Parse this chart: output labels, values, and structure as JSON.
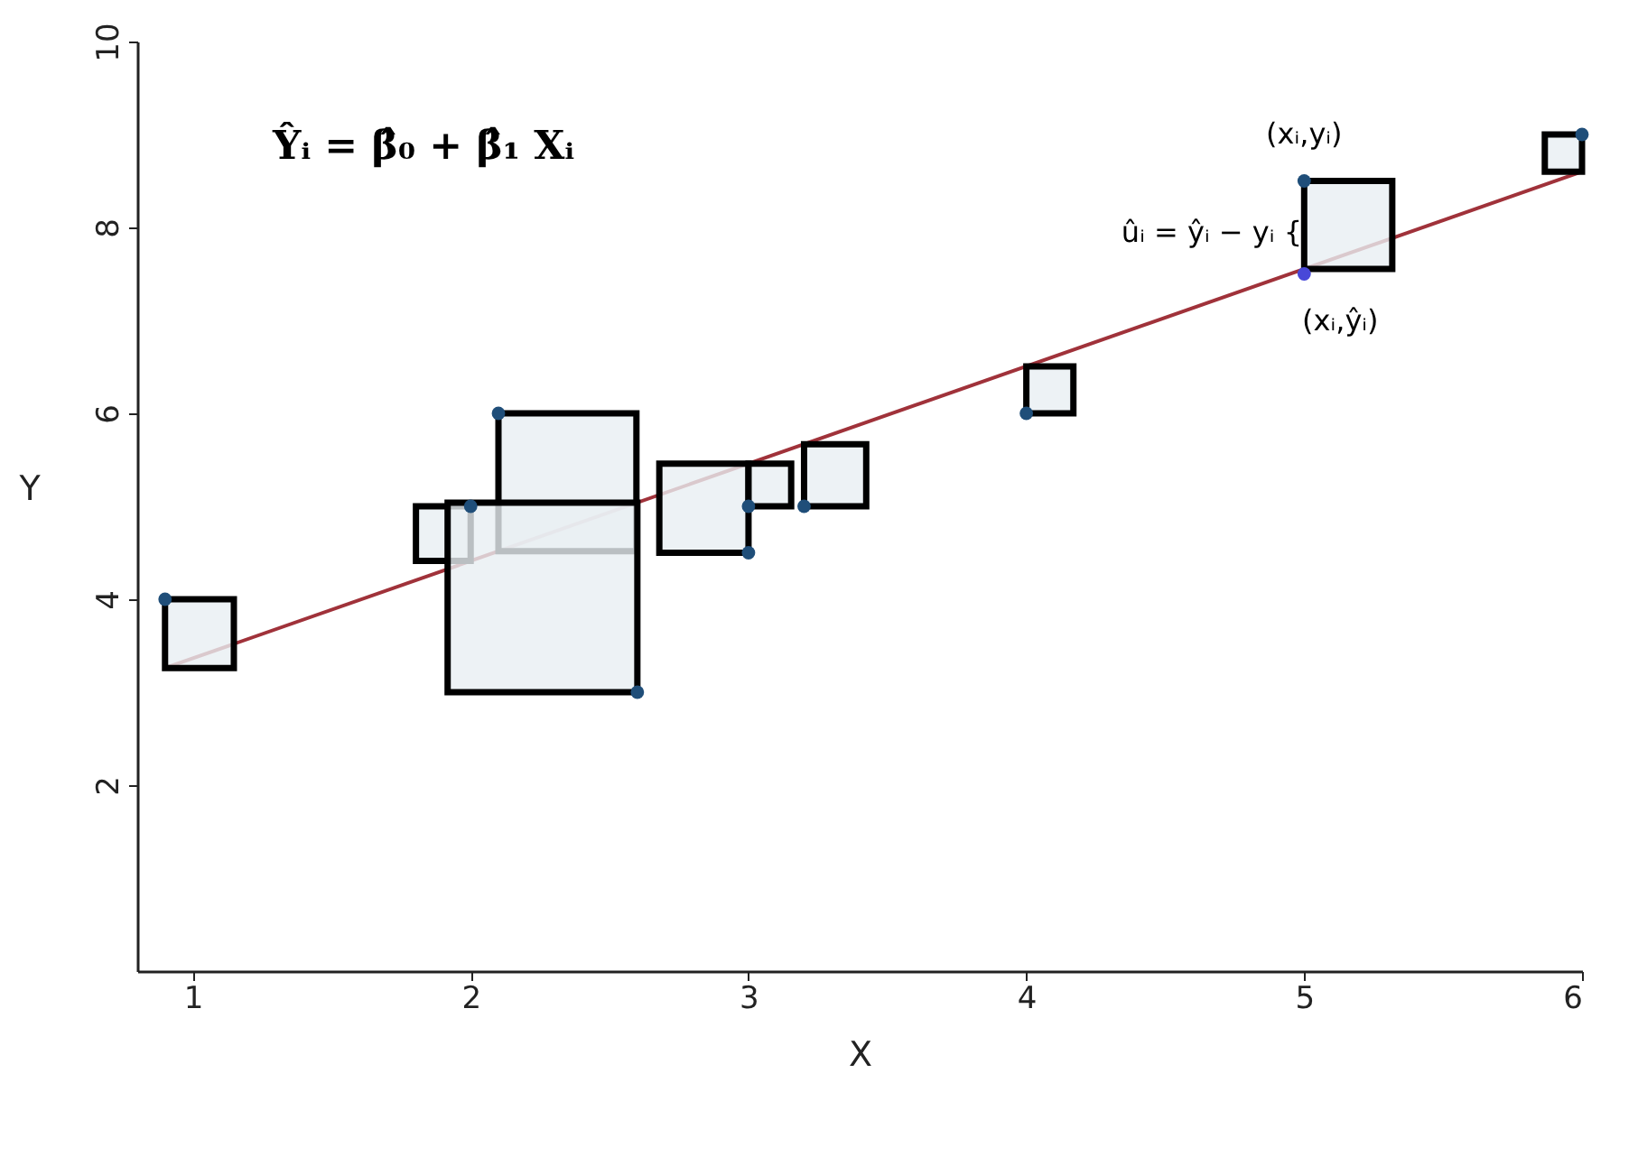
{
  "chart_data": {
    "type": "scatter",
    "xlabel": "X",
    "ylabel": "Y",
    "xlim": [
      0.8,
      6.0
    ],
    "xticks": [
      1,
      2,
      3,
      4,
      5,
      6
    ],
    "ylim": [
      0,
      10
    ],
    "yticks": [
      2,
      4,
      6,
      8,
      10
    ],
    "grid": false,
    "series": [
      {
        "type": "line",
        "color": "#a0323a",
        "x": [
          0.9,
          6.0
        ],
        "values": [
          3.26,
          8.6
        ]
      },
      {
        "marker": "circle",
        "color": "#1f4e79",
        "x": [
          0.9,
          2.0,
          2.1,
          2.6,
          3.0,
          3.0,
          3.2,
          4.0,
          5.0,
          6.0
        ],
        "values": [
          4.0,
          5.0,
          6.0,
          3.0,
          4.5,
          5.0,
          5.0,
          6.0,
          8.5,
          9.0
        ]
      },
      {
        "type": "scatter",
        "marker": "circle",
        "color": "#4848d8",
        "x": [
          5.0
        ],
        "values": [
          7.5
        ]
      }
    ],
    "annotations": [
      "Ŷᵢ = β̂₀ +  β̂₁ Xᵢ",
      {
        "text": "(xᵢ,yᵢ)",
        "x": 5.0,
        "y": 8.5
      },
      "ûᵢ = ŷᵢ − yᵢ {",
      {
        "text": "(xᵢ,ŷᵢ)",
        "x": 5.0,
        "y": 7.5
      }
    ]
  }
}
